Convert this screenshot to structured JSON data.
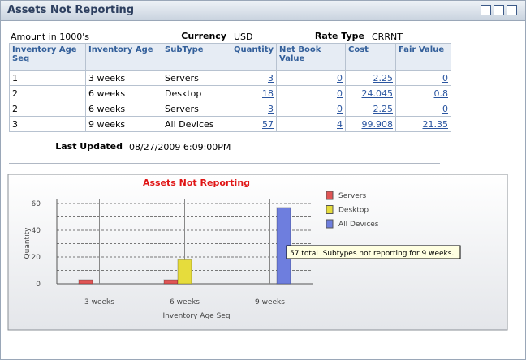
{
  "header": {
    "title": "Assets Not Reporting"
  },
  "summary": {
    "amount_note": "Amount in 1000's",
    "currency_label": "Currency",
    "currency": "USD",
    "rate_type_label": "Rate Type",
    "rate_type": "CRRNT"
  },
  "table": {
    "headers": [
      "Inventory Age Seq",
      "Inventory Age",
      "SubType",
      "Quantity",
      "Net Book Value",
      "Cost",
      "Fair Value"
    ],
    "rows": [
      [
        1,
        "3 weeks",
        "Servers",
        3,
        0,
        2.25,
        0
      ],
      [
        2,
        "6 weeks",
        "Desktop",
        18,
        0,
        24.045,
        0.8
      ],
      [
        2,
        "6 weeks",
        "Servers",
        3,
        0,
        2.25,
        0
      ],
      [
        3,
        "9 weeks",
        "All Devices",
        57,
        4,
        99.908,
        21.35
      ]
    ]
  },
  "last_updated": {
    "label": "Last Updated",
    "value": "08/27/2009 6:09:00PM"
  },
  "chart_data": {
    "type": "bar",
    "title": "Assets Not Reporting",
    "categories": [
      "3 weeks",
      "6 weeks",
      "9 weeks"
    ],
    "series": [
      {
        "name": "Servers",
        "color": "#e05555",
        "values": [
          3,
          3,
          null
        ]
      },
      {
        "name": "Desktop",
        "color": "#e6dc3c",
        "values": [
          null,
          18,
          null
        ]
      },
      {
        "name": "All Devices",
        "color": "#6e7ede",
        "values": [
          null,
          null,
          57
        ]
      }
    ],
    "ylim": [
      0,
      60
    ],
    "yticks": [
      0,
      20,
      40,
      60
    ],
    "minor_yticks": [
      10,
      30,
      50
    ],
    "grid": true,
    "xlabel": "Inventory Age Seq",
    "ylabel": "Quantity",
    "legend": "right",
    "tooltip": "57 total  Subtypes not reporting for 9 weeks."
  }
}
